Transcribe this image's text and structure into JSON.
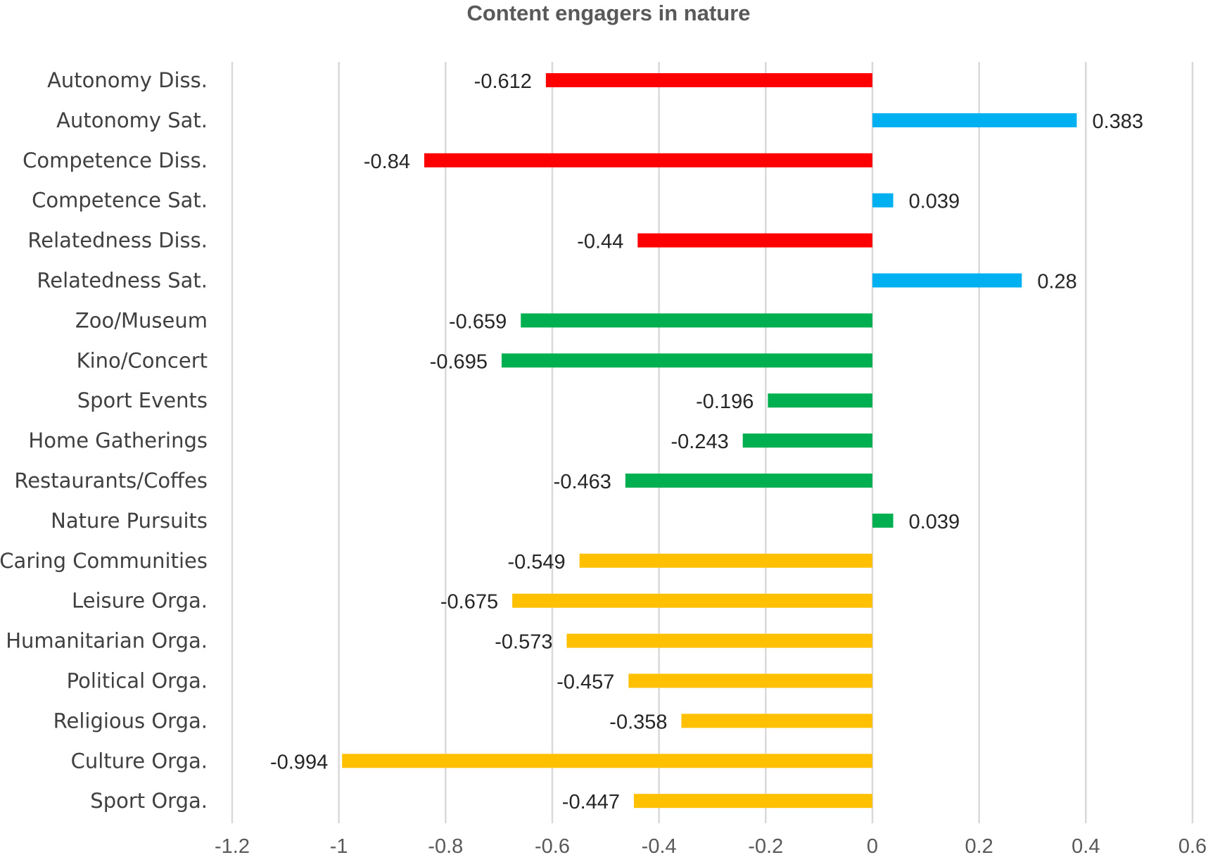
{
  "chart_data": {
    "type": "bar",
    "orientation": "horizontal",
    "title": "Content engagers in nature",
    "xlabel": "",
    "ylabel": "",
    "xlim": [
      -1.2,
      0.6
    ],
    "x_ticks": [
      -1.2,
      -1,
      -0.8,
      -0.6,
      -0.4,
      -0.2,
      0,
      0.2,
      0.4,
      0.6
    ],
    "x_tick_labels": [
      "-1.2",
      "-1",
      "-0.8",
      "-0.6",
      "-0.4",
      "-0.2",
      "0",
      "0.2",
      "0.4",
      "0.6"
    ],
    "grid": "vertical",
    "legend": "none",
    "colors": {
      "dissatisfaction": "#ff0000",
      "satisfaction": "#00b0f0",
      "activities": "#00b050",
      "organizations": "#ffc000"
    },
    "bars": [
      {
        "label": "Autonomy Diss.",
        "value": -0.612,
        "value_label": "-0.612",
        "group": "dissatisfaction"
      },
      {
        "label": "Autonomy Sat.",
        "value": 0.383,
        "value_label": "0.383",
        "group": "satisfaction"
      },
      {
        "label": "Competence Diss.",
        "value": -0.84,
        "value_label": "-0.84",
        "group": "dissatisfaction"
      },
      {
        "label": "Competence Sat.",
        "value": 0.039,
        "value_label": "0.039",
        "group": "satisfaction"
      },
      {
        "label": "Relatedness Diss.",
        "value": -0.44,
        "value_label": "-0.44",
        "group": "dissatisfaction"
      },
      {
        "label": "Relatedness Sat.",
        "value": 0.28,
        "value_label": "0.28",
        "group": "satisfaction"
      },
      {
        "label": "Zoo/Museum",
        "value": -0.659,
        "value_label": "-0.659",
        "group": "activities"
      },
      {
        "label": "Kino/Concert",
        "value": -0.695,
        "value_label": "-0.695",
        "group": "activities"
      },
      {
        "label": "Sport Events",
        "value": -0.196,
        "value_label": "-0.196",
        "group": "activities"
      },
      {
        "label": "Home Gatherings",
        "value": -0.243,
        "value_label": "-0.243",
        "group": "activities"
      },
      {
        "label": "Restaurants/Coffes",
        "value": -0.463,
        "value_label": "-0.463",
        "group": "activities"
      },
      {
        "label": "Nature Pursuits",
        "value": 0.039,
        "value_label": "0.039",
        "group": "activities"
      },
      {
        "label": "Caring Communities",
        "value": -0.549,
        "value_label": "-0.549",
        "group": "organizations"
      },
      {
        "label": "Leisure Orga.",
        "value": -0.675,
        "value_label": "-0.675",
        "group": "organizations"
      },
      {
        "label": "Humanitarian Orga.",
        "value": -0.573,
        "value_label": "-0.573",
        "group": "organizations"
      },
      {
        "label": "Political Orga.",
        "value": -0.457,
        "value_label": "-0.457",
        "group": "organizations"
      },
      {
        "label": "Religious Orga.",
        "value": -0.358,
        "value_label": "-0.358",
        "group": "organizations"
      },
      {
        "label": "Culture Orga.",
        "value": -0.994,
        "value_label": "-0.994",
        "group": "organizations"
      },
      {
        "label": "Sport Orga.",
        "value": -0.447,
        "value_label": "-0.447",
        "group": "organizations"
      }
    ]
  }
}
